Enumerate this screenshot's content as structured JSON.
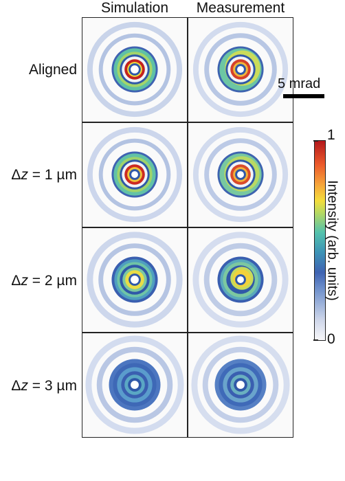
{
  "columns": {
    "simulation": "Simulation",
    "measurement": "Measurement"
  },
  "rows": [
    {
      "label_pre": "Aligned",
      "label_italic": "",
      "label_post": ""
    },
    {
      "label_pre": "Δ",
      "label_italic": "z",
      "label_post": " = 1 µm"
    },
    {
      "label_pre": "Δ",
      "label_italic": "z",
      "label_post": " = 2 µm"
    },
    {
      "label_pre": "Δ",
      "label_italic": "z",
      "label_post": " = 3 µm"
    }
  ],
  "scale_bar": {
    "label": "5 mrad"
  },
  "colorbar": {
    "title": "Intensity (arb. units)",
    "max_label": "1",
    "min_label": "0"
  }
}
